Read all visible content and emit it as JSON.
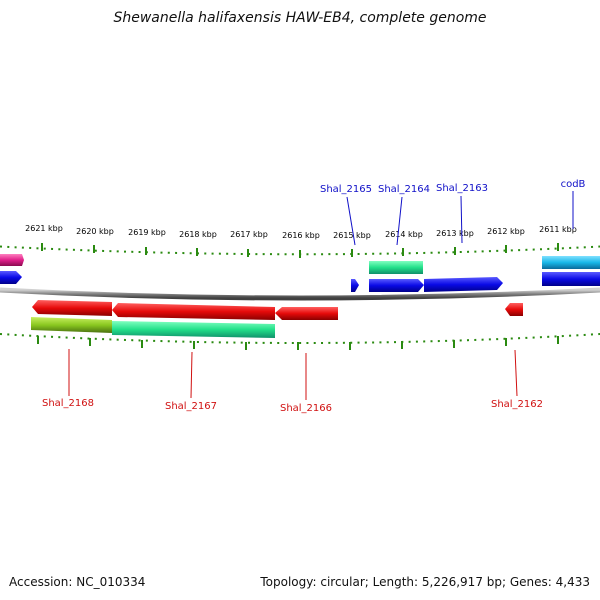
{
  "title": "Shewanella halifaxensis HAW-EB4, complete genome",
  "footer": {
    "accession": "Accession: NC_010334",
    "summary": "Topology: circular; Length: 5,226,917 bp; Genes: 4,433"
  },
  "scale_labels": [
    "2621 kbp",
    "2620 kbp",
    "2619 kbp",
    "2618 kbp",
    "2617 kbp",
    "2616 kbp",
    "2615 kbp",
    "2614 kbp",
    "2613 kbp",
    "2612 kbp",
    "2611 kbp"
  ],
  "gene_labels_top": [
    "Shal_2165",
    "Shal_2164",
    "Shal_2163",
    "codB"
  ],
  "gene_labels_bottom": [
    "Shal_2168",
    "Shal_2167",
    "Shal_2166",
    "Shal_2162"
  ],
  "colors": {
    "forward_cds": "#0a0ae6",
    "reverse_cds": "#e60a0a",
    "feature_green": "#22e08a",
    "feature_cyan": "#18b8e8",
    "feature_magenta": "#e0208a",
    "feature_olive": "#8ac820",
    "tick_green": "#2a8a10",
    "backbone": "#808080"
  }
}
